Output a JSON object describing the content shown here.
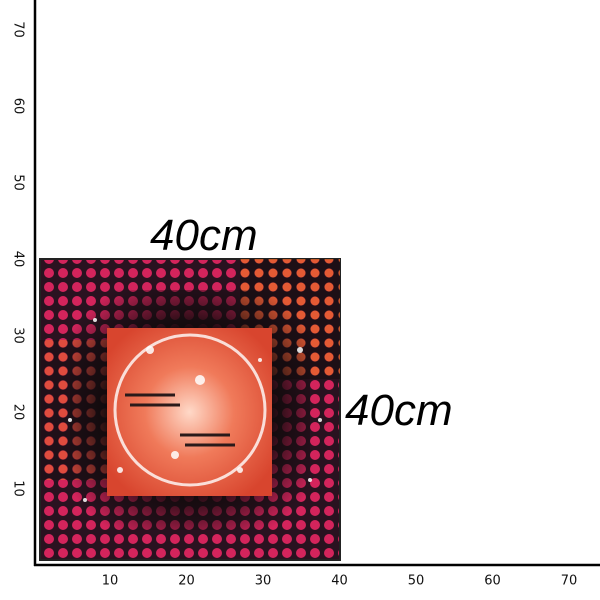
{
  "ruler": {
    "x_ticks": [
      10,
      20,
      30,
      40,
      50,
      60,
      70
    ],
    "y_ticks": [
      10,
      20,
      30,
      40,
      50,
      60,
      70
    ]
  },
  "dimensions": {
    "width": "40cm",
    "height": "40cm"
  }
}
